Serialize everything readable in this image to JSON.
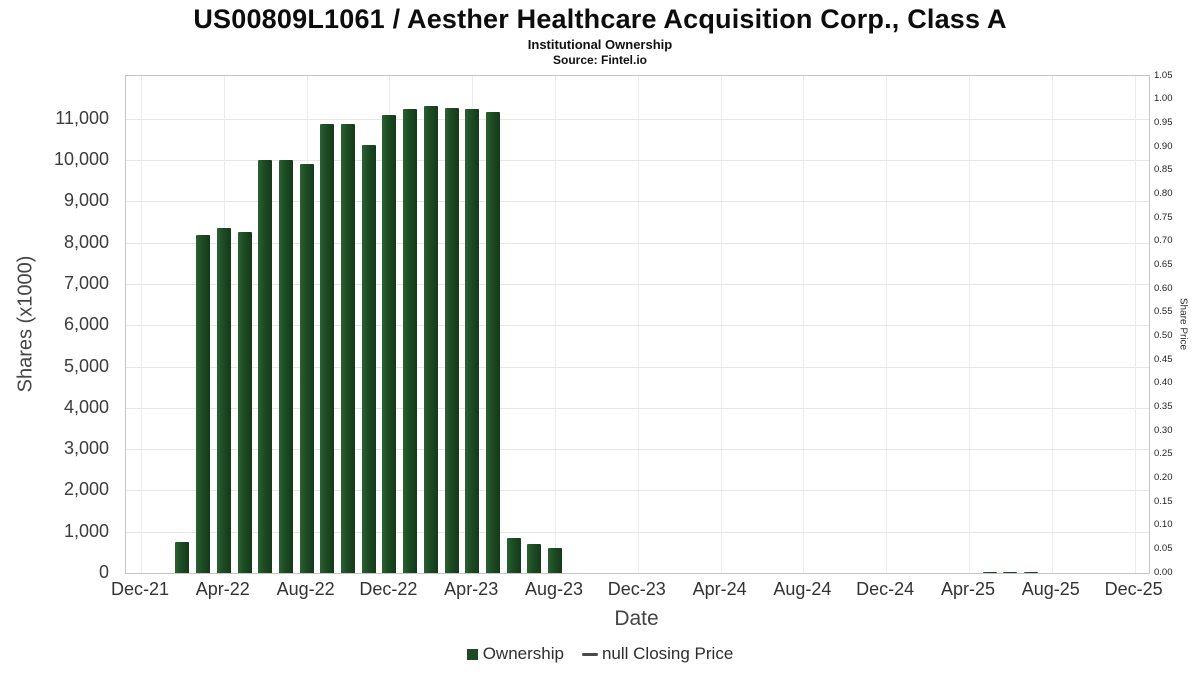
{
  "header": {
    "title": "US00809L1061 / Aesther Healthcare Acquisition Corp., Class A",
    "subtitle": "Institutional Ownership",
    "source": "Source: Fintel.io"
  },
  "axes": {
    "left_label": "Shares (x1000)",
    "right_label": "Share Price",
    "x_label": "Date"
  },
  "legend": {
    "ownership_label": "Ownership",
    "closing_price_label": "null Closing Price",
    "ownership_color": "#1d4a22",
    "line_color": "#4a4a4a"
  },
  "chart_data": {
    "type": "bar",
    "title": "US00809L1061 / Aesther Healthcare Acquisition Corp., Class A",
    "subtitle": "Institutional Ownership",
    "source": "Fintel.io",
    "xlabel": "Date",
    "ylabel_left": "Shares (x1000)",
    "ylabel_right": "Share Price",
    "grid": true,
    "legend_position": "bottom",
    "bar_color": "#1d4a22",
    "left_axis": {
      "min": 0,
      "max": 12040,
      "ticks": [
        {
          "value": 0,
          "label": "0"
        },
        {
          "value": 1000,
          "label": "1,000"
        },
        {
          "value": 2000,
          "label": "2,000"
        },
        {
          "value": 3000,
          "label": "3,000"
        },
        {
          "value": 4000,
          "label": "4,000"
        },
        {
          "value": 5000,
          "label": "5,000"
        },
        {
          "value": 6000,
          "label": "6,000"
        },
        {
          "value": 7000,
          "label": "7,000"
        },
        {
          "value": 8000,
          "label": "8,000"
        },
        {
          "value": 9000,
          "label": "9,000"
        },
        {
          "value": 10000,
          "label": "10,000"
        },
        {
          "value": 11000,
          "label": "11,000"
        }
      ]
    },
    "right_axis": {
      "min": 0,
      "max": 1.05,
      "tick_step": 0.05,
      "ticks": [
        "0.00",
        "0.05",
        "0.10",
        "0.15",
        "0.20",
        "0.25",
        "0.30",
        "0.35",
        "0.40",
        "0.45",
        "0.50",
        "0.55",
        "0.60",
        "0.65",
        "0.70",
        "0.75",
        "0.80",
        "0.85",
        "0.90",
        "0.95",
        "1.00",
        "1.05"
      ]
    },
    "x_axis": {
      "start": "Dec-21",
      "end": "Dec-25",
      "months_span": 48,
      "ticks": [
        {
          "m": 0,
          "label": "Dec-21"
        },
        {
          "m": 4,
          "label": "Apr-22"
        },
        {
          "m": 8,
          "label": "Aug-22"
        },
        {
          "m": 12,
          "label": "Dec-22"
        },
        {
          "m": 16,
          "label": "Apr-23"
        },
        {
          "m": 20,
          "label": "Aug-23"
        },
        {
          "m": 24,
          "label": "Dec-23"
        },
        {
          "m": 28,
          "label": "Apr-24"
        },
        {
          "m": 32,
          "label": "Aug-24"
        },
        {
          "m": 36,
          "label": "Dec-24"
        },
        {
          "m": 40,
          "label": "Apr-25"
        },
        {
          "m": 44,
          "label": "Aug-25"
        },
        {
          "m": 48,
          "label": "Dec-25"
        }
      ]
    },
    "series": [
      {
        "name": "Ownership",
        "type": "bar",
        "unit": "thousand shares",
        "points": [
          {
            "date": "Feb-22",
            "m": 2,
            "value": 750
          },
          {
            "date": "Mar-22",
            "m": 3,
            "value": 8200
          },
          {
            "date": "Apr-22",
            "m": 4,
            "value": 8350
          },
          {
            "date": "May-22",
            "m": 5,
            "value": 8270
          },
          {
            "date": "Jun-22",
            "m": 6,
            "value": 10000
          },
          {
            "date": "Jul-22",
            "m": 7,
            "value": 10000
          },
          {
            "date": "Aug-22",
            "m": 8,
            "value": 9920
          },
          {
            "date": "Sep-22",
            "m": 9,
            "value": 10870
          },
          {
            "date": "Oct-22",
            "m": 10,
            "value": 10870
          },
          {
            "date": "Nov-22",
            "m": 11,
            "value": 10380
          },
          {
            "date": "Dec-22",
            "m": 12,
            "value": 11100
          },
          {
            "date": "Jan-23",
            "m": 13,
            "value": 11230
          },
          {
            "date": "Feb-23",
            "m": 14,
            "value": 11320
          },
          {
            "date": "Mar-23",
            "m": 15,
            "value": 11260
          },
          {
            "date": "Apr-23",
            "m": 16,
            "value": 11230
          },
          {
            "date": "May-23",
            "m": 17,
            "value": 11180
          },
          {
            "date": "Jun-23",
            "m": 18,
            "value": 840
          },
          {
            "date": "Jul-23",
            "m": 19,
            "value": 700
          },
          {
            "date": "Aug-23",
            "m": 20,
            "value": 610
          },
          {
            "date": "May-25",
            "m": 41,
            "value": 20
          },
          {
            "date": "Jun-25",
            "m": 42,
            "value": 25
          },
          {
            "date": "Jul-25",
            "m": 43,
            "value": 20
          }
        ]
      },
      {
        "name": "null Closing Price",
        "type": "line",
        "points": []
      }
    ]
  }
}
